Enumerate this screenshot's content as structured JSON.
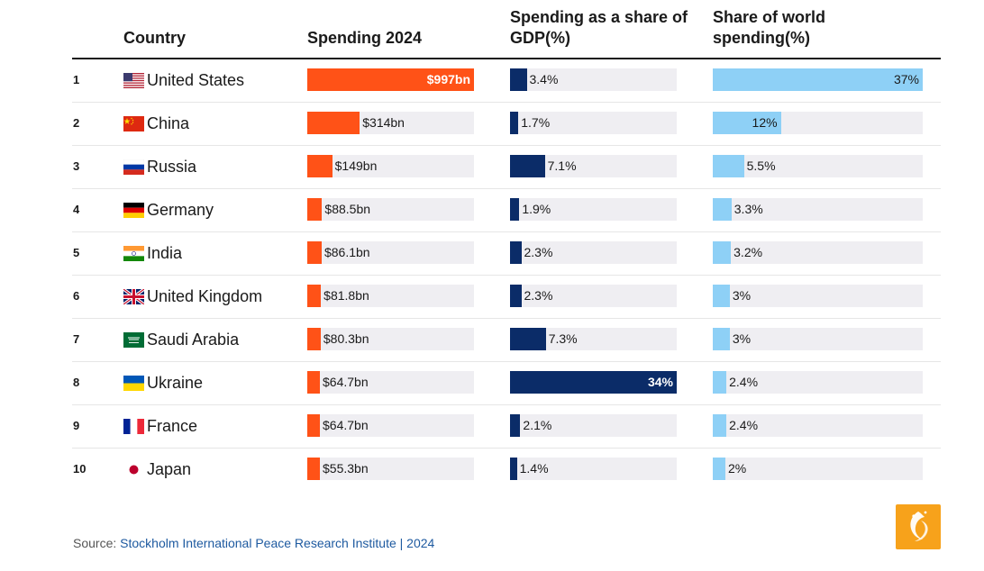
{
  "header": {
    "country": "Country",
    "spending": "Spending 2024",
    "gdp": "Spending as a share of GDP(%)",
    "world": "Share of world spending(%)"
  },
  "chart_data": {
    "type": "table",
    "columns": [
      "Country",
      "Spending 2024",
      "Spending as a share of GDP(%)",
      "Share of world spending(%)"
    ],
    "spend_max": 997,
    "gdp_max": 34,
    "world_max": 37,
    "rows": [
      {
        "rank": "1",
        "country": "United States",
        "flag": "us-flag-icon",
        "spend": 997,
        "spend_label": "$997bn",
        "gdp": 3.4,
        "gdp_label": "3.4%",
        "world": 37,
        "world_label": "37%"
      },
      {
        "rank": "2",
        "country": "China",
        "flag": "china-flag-icon",
        "spend": 314,
        "spend_label": "$314bn",
        "gdp": 1.7,
        "gdp_label": "1.7%",
        "world": 12,
        "world_label": "12%"
      },
      {
        "rank": "3",
        "country": "Russia",
        "flag": "russia-flag-icon",
        "spend": 149,
        "spend_label": "$149bn",
        "gdp": 7.1,
        "gdp_label": "7.1%",
        "world": 5.5,
        "world_label": "5.5%"
      },
      {
        "rank": "4",
        "country": "Germany",
        "flag": "germany-flag-icon",
        "spend": 88.5,
        "spend_label": "$88.5bn",
        "gdp": 1.9,
        "gdp_label": "1.9%",
        "world": 3.3,
        "world_label": "3.3%"
      },
      {
        "rank": "5",
        "country": "India",
        "flag": "india-flag-icon",
        "spend": 86.1,
        "spend_label": "$86.1bn",
        "gdp": 2.3,
        "gdp_label": "2.3%",
        "world": 3.2,
        "world_label": "3.2%"
      },
      {
        "rank": "6",
        "country": "United Kingdom",
        "flag": "uk-flag-icon",
        "spend": 81.8,
        "spend_label": "$81.8bn",
        "gdp": 2.3,
        "gdp_label": "2.3%",
        "world": 3,
        "world_label": "3%"
      },
      {
        "rank": "7",
        "country": "Saudi Arabia",
        "flag": "saudi-arabia-flag-icon",
        "spend": 80.3,
        "spend_label": "$80.3bn",
        "gdp": 7.3,
        "gdp_label": "7.3%",
        "world": 3,
        "world_label": "3%"
      },
      {
        "rank": "8",
        "country": "Ukraine",
        "flag": "ukraine-flag-icon",
        "spend": 64.7,
        "spend_label": "$64.7bn",
        "gdp": 34,
        "gdp_label": "34%",
        "world": 2.4,
        "world_label": "2.4%"
      },
      {
        "rank": "9",
        "country": "France",
        "flag": "france-flag-icon",
        "spend": 64.7,
        "spend_label": "$64.7bn",
        "gdp": 2.1,
        "gdp_label": "2.1%",
        "world": 2.4,
        "world_label": "2.4%"
      },
      {
        "rank": "10",
        "country": "Japan",
        "flag": "japan-flag-icon",
        "spend": 55.3,
        "spend_label": "$55.3bn",
        "gdp": 1.4,
        "gdp_label": "1.4%",
        "world": 2,
        "world_label": "2%"
      }
    ],
    "colors": {
      "spending": "#ff5217",
      "gdp": "#0b2c68",
      "world": "#8ed0f6",
      "track": "#efeef2"
    }
  },
  "source": {
    "prefix": "Source: ",
    "text": "Stockholm International Peace Research Institute | 2024"
  },
  "logo": {
    "icon": "al-jazeera-logo-icon"
  }
}
